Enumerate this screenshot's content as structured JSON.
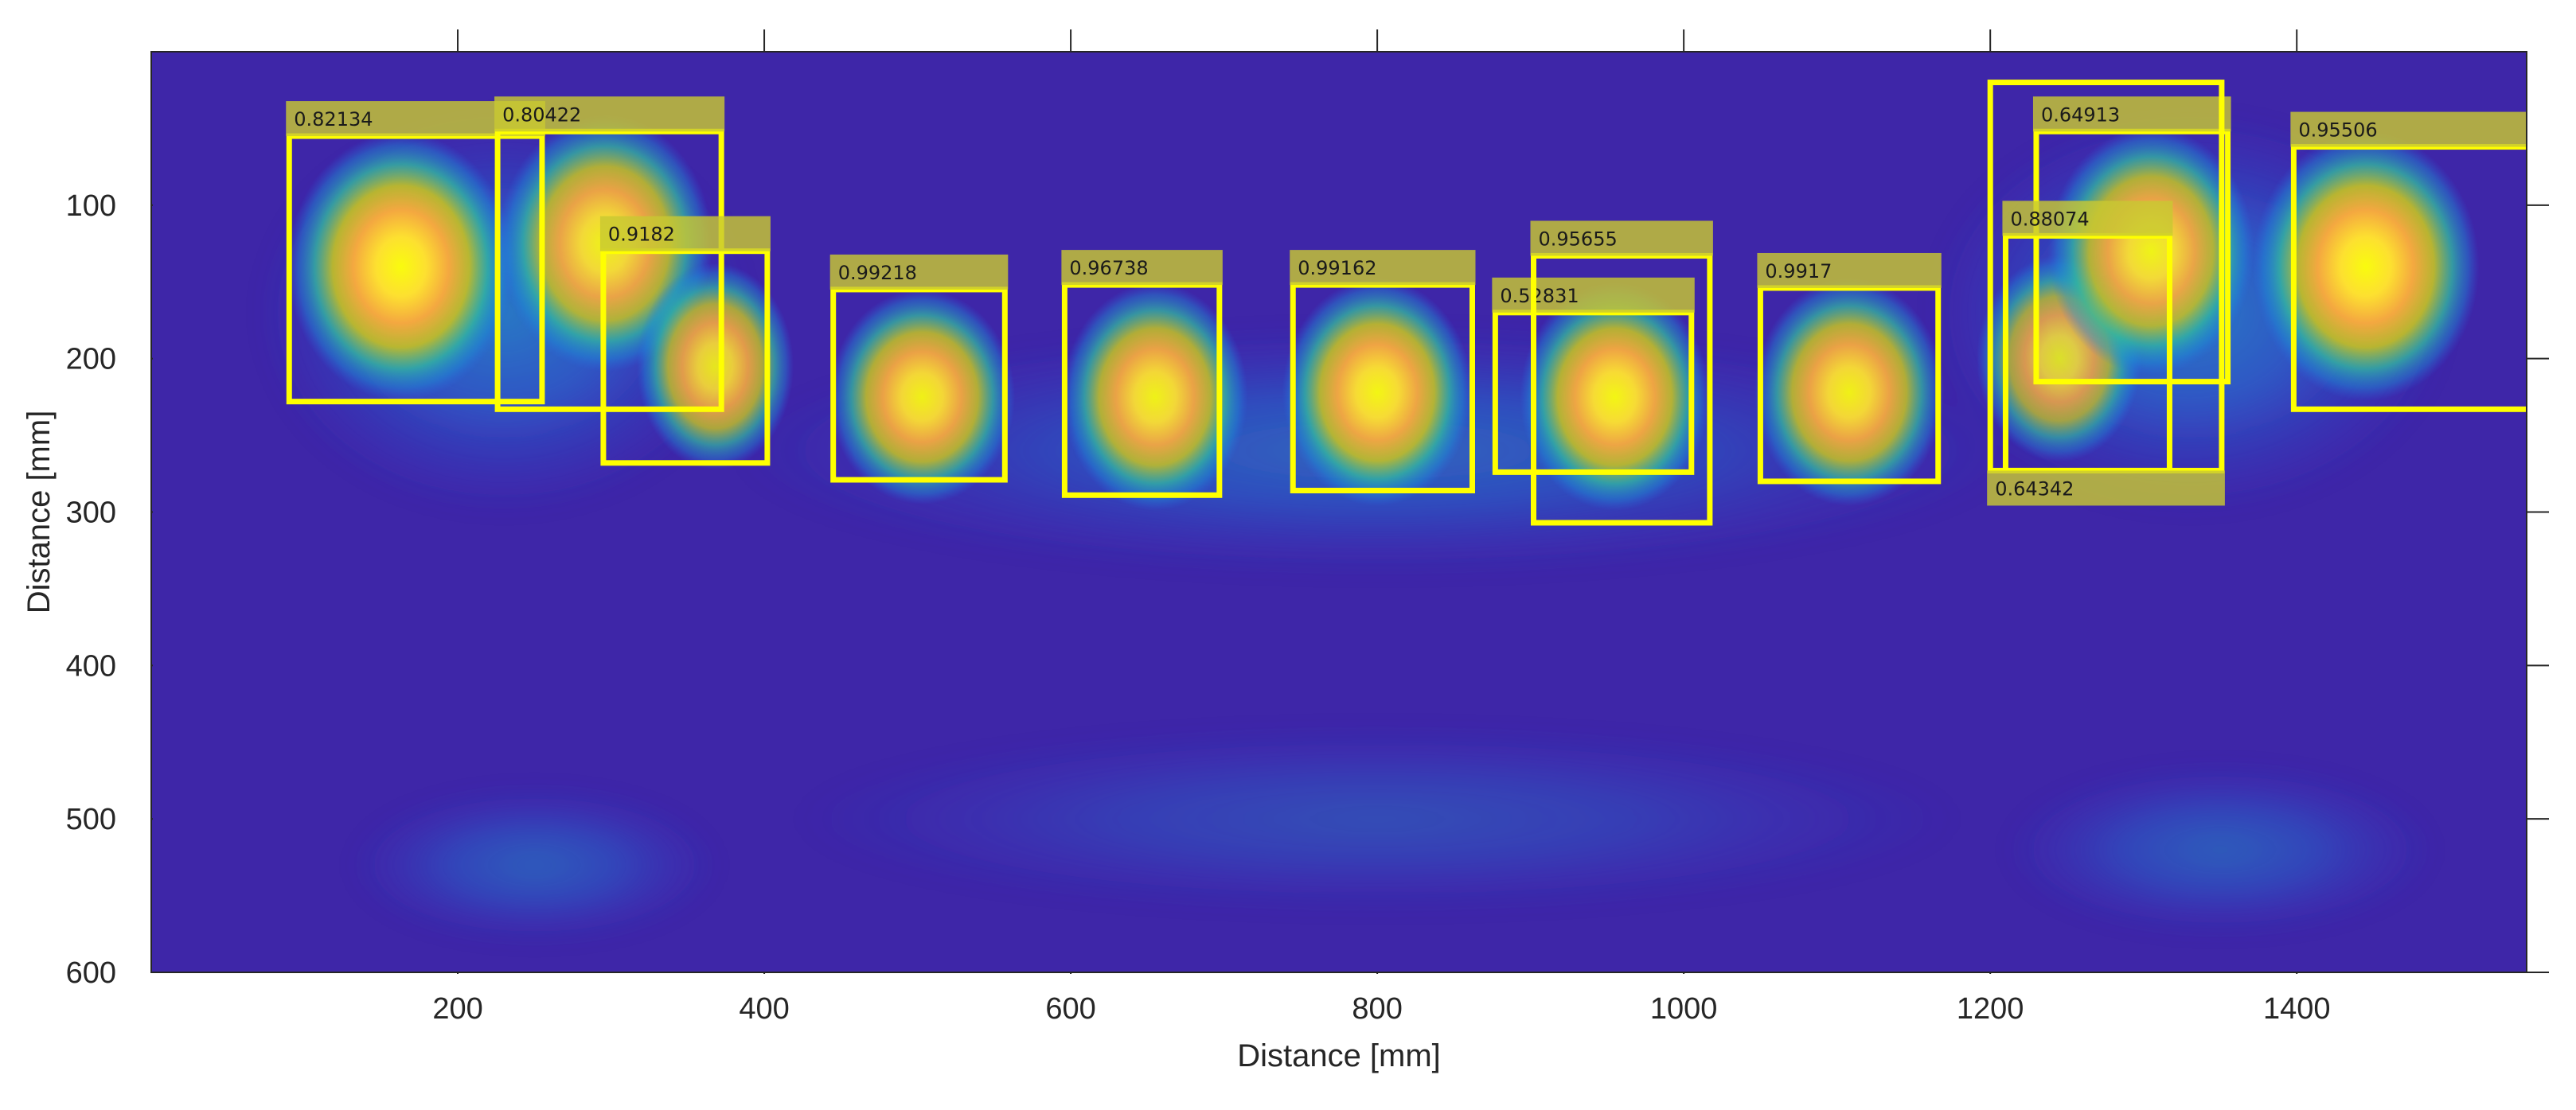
{
  "chart_data": {
    "type": "heatmap",
    "title": "",
    "xlabel": "Distance [mm]",
    "ylabel": "Distance [mm]",
    "xlim": [
      0,
      1550
    ],
    "ylim": [
      600,
      0
    ],
    "x_ticks": [
      200,
      400,
      600,
      800,
      1000,
      1200,
      1400
    ],
    "y_ticks": [
      100,
      200,
      300,
      400,
      500,
      600
    ],
    "image_extent": {
      "x": [
        0,
        1550
      ],
      "y": [
        8,
        600
      ]
    },
    "colormap": "parula",
    "grid": false,
    "legend": "none",
    "colors": {
      "background": "#3e26a8",
      "box": "#ffff00",
      "label_fill": "#c8c832"
    },
    "hotspots": [
      {
        "x": 163,
        "y": 140,
        "intensity": 1.0,
        "sx": 55,
        "sy": 65
      },
      {
        "x": 296,
        "y": 125,
        "intensity": 0.95,
        "sx": 52,
        "sy": 62
      },
      {
        "x": 368,
        "y": 205,
        "intensity": 0.9,
        "sx": 38,
        "sy": 50
      },
      {
        "x": 503,
        "y": 225,
        "intensity": 0.95,
        "sx": 45,
        "sy": 52
      },
      {
        "x": 655,
        "y": 225,
        "intensity": 0.95,
        "sx": 45,
        "sy": 55
      },
      {
        "x": 800,
        "y": 222,
        "intensity": 0.97,
        "sx": 46,
        "sy": 55
      },
      {
        "x": 955,
        "y": 225,
        "intensity": 0.97,
        "sx": 46,
        "sy": 55
      },
      {
        "x": 1108,
        "y": 222,
        "intensity": 0.95,
        "sx": 46,
        "sy": 55
      },
      {
        "x": 1245,
        "y": 200,
        "intensity": 0.85,
        "sx": 40,
        "sy": 50
      },
      {
        "x": 1305,
        "y": 130,
        "intensity": 0.95,
        "sx": 50,
        "sy": 60
      },
      {
        "x": 1445,
        "y": 140,
        "intensity": 1.0,
        "sx": 55,
        "sy": 65
      }
    ],
    "glow": [
      {
        "x": 230,
        "y": 170,
        "intensity": 0.45,
        "sx": 160,
        "sy": 130
      },
      {
        "x": 800,
        "y": 260,
        "intensity": 0.35,
        "sx": 420,
        "sy": 80
      },
      {
        "x": 1330,
        "y": 170,
        "intensity": 0.45,
        "sx": 170,
        "sy": 130
      },
      {
        "x": 250,
        "y": 530,
        "intensity": 0.3,
        "sx": 120,
        "sy": 50
      },
      {
        "x": 1350,
        "y": 520,
        "intensity": 0.3,
        "sx": 140,
        "sy": 55
      },
      {
        "x": 800,
        "y": 500,
        "intensity": 0.22,
        "sx": 380,
        "sy": 60
      }
    ],
    "detections": [
      {
        "label": "0.82134",
        "x1": 90,
        "y1": 55,
        "x2": 255,
        "y2": 228
      },
      {
        "label": "0.80422",
        "x1": 226,
        "y1": 52,
        "x2": 372,
        "y2": 233
      },
      {
        "label": "0.9182",
        "x1": 295,
        "y1": 130,
        "x2": 402,
        "y2": 268
      },
      {
        "label": "0.99218",
        "x1": 445,
        "y1": 155,
        "x2": 557,
        "y2": 279
      },
      {
        "label": "0.96738",
        "x1": 596,
        "y1": 152,
        "x2": 697,
        "y2": 289
      },
      {
        "label": "0.99162",
        "x1": 745,
        "y1": 152,
        "x2": 862,
        "y2": 286
      },
      {
        "label": "0.52831",
        "x1": 877,
        "y1": 170,
        "x2": 1005,
        "y2": 274
      },
      {
        "label": "0.95655",
        "x1": 902,
        "y1": 133,
        "x2": 1017,
        "y2": 307
      },
      {
        "label": "0.9917",
        "x1": 1050,
        "y1": 154,
        "x2": 1166,
        "y2": 280
      },
      {
        "label": "0.64913",
        "x1": 1230,
        "y1": 52,
        "x2": 1355,
        "y2": 215
      },
      {
        "label": "0.88074",
        "x1": 1210,
        "y1": 120,
        "x2": 1317,
        "y2": 273
      },
      {
        "label": "0.64342",
        "x1": 1200,
        "y1": 20,
        "x2": 1351,
        "y2": 273,
        "label_position": "bottom"
      },
      {
        "label": "0.95506",
        "x1": 1398,
        "y1": 62,
        "x2": 1566,
        "y2": 233
      }
    ]
  }
}
